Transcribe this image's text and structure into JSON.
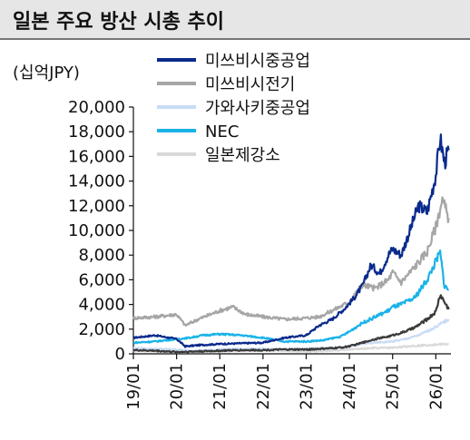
{
  "chart_data": {
    "type": "line",
    "title": "일본 주요 방산 시총 추이",
    "unit_label": "(십억JPY)",
    "xlabel": "",
    "ylabel": "",
    "ylim": [
      0,
      20000
    ],
    "y_ticks": [
      0,
      2000,
      4000,
      6000,
      8000,
      10000,
      12000,
      14000,
      16000,
      18000,
      20000
    ],
    "y_tick_labels": [
      "0",
      "2,000",
      "4,000",
      "6,000",
      "8,000",
      "10,000",
      "12,000",
      "14,000",
      "16,000",
      "18,000",
      "20,000"
    ],
    "x_range": [
      2019.0,
      2026.35
    ],
    "x_ticks": [
      2019,
      2020,
      2021,
      2022,
      2023,
      2024,
      2025,
      2026
    ],
    "x_tick_labels": [
      "19/01",
      "20/01",
      "21/01",
      "22/01",
      "23/01",
      "24/01",
      "25/01",
      "26/01"
    ],
    "grid": false,
    "legend_position": "top-right",
    "series": [
      {
        "name": "미쓰비시중공업",
        "color": "#0a2a8c",
        "width": 3,
        "x": [
          2019.0,
          2019.5,
          2020.0,
          2020.2,
          2020.5,
          2021.0,
          2021.5,
          2022.0,
          2022.5,
          2023.0,
          2023.3,
          2023.6,
          2023.9,
          2024.1,
          2024.3,
          2024.5,
          2024.7,
          2024.9,
          2025.0,
          2025.2,
          2025.4,
          2025.6,
          2025.8,
          2026.0,
          2026.1,
          2026.2,
          2026.3
        ],
        "values": [
          1300,
          1500,
          1200,
          600,
          700,
          800,
          850,
          900,
          1300,
          1500,
          2300,
          2800,
          3700,
          4500,
          5500,
          7200,
          6500,
          8000,
          8500,
          8000,
          10000,
          12000,
          11500,
          14500,
          17500,
          15500,
          16500
        ]
      },
      {
        "name": "미쓰비시전기",
        "color": "#a6a6a6",
        "width": 3,
        "x": [
          2019.0,
          2019.5,
          2020.0,
          2020.2,
          2020.5,
          2021.0,
          2021.3,
          2021.6,
          2022.0,
          2022.5,
          2023.0,
          2023.3,
          2023.6,
          2024.0,
          2024.3,
          2024.6,
          2024.9,
          2025.0,
          2025.2,
          2025.5,
          2025.8,
          2026.0,
          2026.15,
          2026.3
        ],
        "values": [
          2900,
          3000,
          3200,
          2300,
          2800,
          3500,
          3800,
          3200,
          3000,
          2800,
          2900,
          3000,
          3500,
          4200,
          5600,
          5300,
          6000,
          6600,
          5800,
          7000,
          8300,
          10300,
          12500,
          11000
        ]
      },
      {
        "name": "가와사키중공업",
        "color": "#c9dcf5",
        "width": 3,
        "x": [
          2019.0,
          2019.5,
          2020.0,
          2020.3,
          2020.7,
          2021.0,
          2021.5,
          2022.0,
          2022.5,
          2023.0,
          2023.5,
          2024.0,
          2024.3,
          2024.6,
          2025.0,
          2025.3,
          2025.6,
          2025.9,
          2026.1,
          2026.3
        ],
        "values": [
          450,
          400,
          350,
          250,
          280,
          350,
          400,
          380,
          360,
          400,
          450,
          600,
          800,
          900,
          1000,
          1200,
          1500,
          2000,
          2400,
          2800
        ]
      },
      {
        "name": "NEC",
        "color": "#1ab3e8",
        "width": 3,
        "x": [
          2019.0,
          2019.5,
          2020.0,
          2020.3,
          2020.6,
          2021.0,
          2021.5,
          2022.0,
          2022.5,
          2023.0,
          2023.4,
          2023.8,
          2024.0,
          2024.3,
          2024.6,
          2024.9,
          2025.0,
          2025.2,
          2025.5,
          2025.8,
          2026.0,
          2026.1,
          2026.2,
          2026.3
        ],
        "values": [
          900,
          1000,
          1200,
          1300,
          1500,
          1600,
          1500,
          1300,
          1000,
          1000,
          1100,
          1400,
          1800,
          2500,
          3000,
          3500,
          3800,
          4000,
          4500,
          6000,
          7500,
          8200,
          5500,
          5200
        ]
      },
      {
        "name": "일본제강소",
        "color": "#d9d9d9",
        "width": 3,
        "x": [
          2019.0,
          2019.5,
          2020.0,
          2020.5,
          2021.0,
          2021.5,
          2022.0,
          2022.5,
          2023.0,
          2023.5,
          2024.0,
          2024.5,
          2025.0,
          2025.5,
          2026.0,
          2026.3
        ],
        "values": [
          250,
          220,
          150,
          180,
          200,
          250,
          300,
          250,
          200,
          250,
          350,
          450,
          500,
          650,
          750,
          800
        ]
      },
      {
        "name": "",
        "color": "#3a3a3a",
        "width": 3,
        "x": [
          2019.0,
          2019.5,
          2020.0,
          2020.5,
          2021.0,
          2021.5,
          2022.0,
          2022.5,
          2023.0,
          2023.3,
          2023.6,
          2023.9,
          2024.1,
          2024.3,
          2024.6,
          2024.9,
          2025.0,
          2025.2,
          2025.5,
          2025.8,
          2026.0,
          2026.1,
          2026.2,
          2026.3
        ],
        "values": [
          300,
          250,
          150,
          200,
          250,
          300,
          300,
          350,
          350,
          400,
          450,
          550,
          700,
          900,
          1200,
          1400,
          1500,
          1700,
          2100,
          2800,
          3400,
          4800,
          4200,
          3600
        ]
      }
    ]
  }
}
